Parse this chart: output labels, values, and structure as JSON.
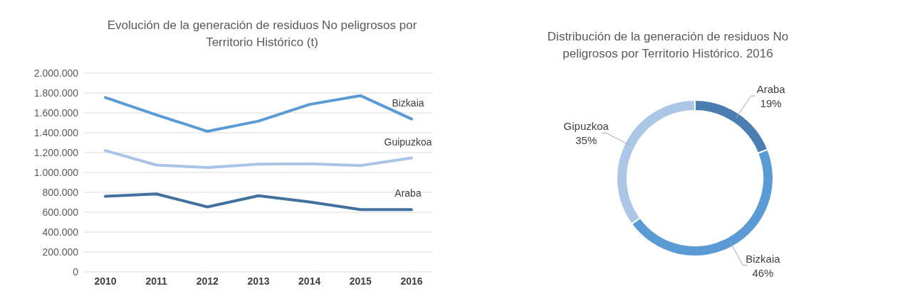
{
  "chart_data": [
    {
      "type": "line",
      "title": "Evolución de la generación de residuos No peligrosos por Territorio Histórico (t)",
      "categories": [
        "2010",
        "2011",
        "2012",
        "2013",
        "2014",
        "2015",
        "2016"
      ],
      "series": [
        {
          "name": "Bizkaia",
          "color": "#5b9bd5",
          "values": [
            1755000,
            1580000,
            1414000,
            1517000,
            1685000,
            1773000,
            1538000
          ]
        },
        {
          "name": "Guipuzkoa",
          "color": "#a9c4e6",
          "values": [
            1220000,
            1075000,
            1050000,
            1084000,
            1087000,
            1070000,
            1146000
          ]
        },
        {
          "name": "Araba",
          "color": "#41719c",
          "values": [
            760000,
            784000,
            654000,
            766000,
            704000,
            627000,
            627000
          ]
        }
      ],
      "ylim": [
        0,
        2000000
      ],
      "yticks": [
        0,
        {
          "value": 200000,
          "label": "200.000"
        },
        {
          "value": 400000,
          "label": "400.000"
        },
        {
          "value": 600000,
          "label": "600.000"
        },
        {
          "value": 800000,
          "label": "800.000"
        },
        {
          "value": 1000000,
          "label": "1.000.000"
        },
        {
          "value": 1200000,
          "label": "1.200.000"
        },
        {
          "value": 1400000,
          "label": "1.400.000"
        },
        {
          "value": 1600000,
          "label": "1.600.000"
        },
        {
          "value": 1800000,
          "label": "1.800.000"
        },
        {
          "value": 2000000,
          "label": "2.000.000"
        }
      ],
      "grid": "y",
      "marker": "none",
      "line_style": "solid"
    },
    {
      "type": "donut",
      "title": "Distribución de la generación de residuos No peligrosos por Territorio Histórico. 2016",
      "categories": [
        "Araba",
        "Bizkaia",
        "Gipuzkoa"
      ],
      "values": [
        19,
        46,
        35
      ],
      "value_labels": [
        "19%",
        "46%",
        "35%"
      ],
      "colors": [
        "#4a7eb0",
        "#5b9bd5",
        "#abc6e6"
      ]
    }
  ]
}
